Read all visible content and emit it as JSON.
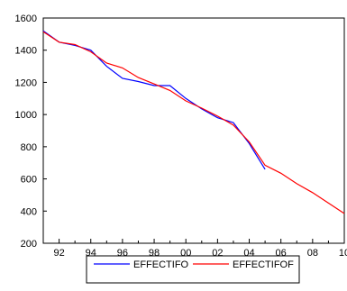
{
  "chart_data": {
    "type": "line",
    "x_tick_labels": [
      "92",
      "94",
      "96",
      "98",
      "00",
      "02",
      "04",
      "06",
      "08",
      "10"
    ],
    "x_ticks": [
      1992,
      1994,
      1996,
      1998,
      2000,
      2002,
      2004,
      2006,
      2008,
      2010
    ],
    "xlim": [
      1991,
      2010
    ],
    "ylim": [
      200,
      1600
    ],
    "y_ticks": [
      200,
      400,
      600,
      800,
      1000,
      1200,
      1400,
      1600
    ],
    "grid": false,
    "legend_position": "bottom",
    "series": [
      {
        "name": "EFFECTIFO",
        "color": "#0000ff",
        "x": [
          1991,
          1992,
          1993,
          1994,
          1995,
          1996,
          1997,
          1998,
          1999,
          2000,
          2001,
          2002,
          2003,
          2004,
          2005
        ],
        "values": [
          1520,
          1450,
          1430,
          1400,
          1300,
          1225,
          1205,
          1180,
          1180,
          1100,
          1035,
          980,
          950,
          820,
          660
        ]
      },
      {
        "name": "EFFECTIFOF",
        "color": "#ff0000",
        "x": [
          1991,
          1992,
          1993,
          1994,
          1995,
          1996,
          1997,
          1998,
          1999,
          2000,
          2001,
          2002,
          2003,
          2004,
          2005,
          2006,
          2007,
          2008,
          2009,
          2010
        ],
        "values": [
          1515,
          1450,
          1435,
          1390,
          1320,
          1290,
          1230,
          1190,
          1150,
          1085,
          1040,
          990,
          935,
          830,
          685,
          635,
          570,
          515,
          450,
          385
        ]
      }
    ]
  }
}
